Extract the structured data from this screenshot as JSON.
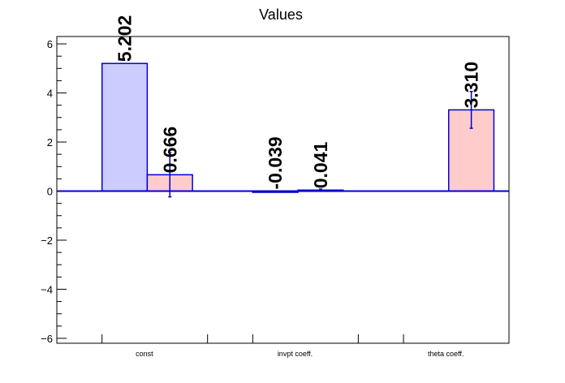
{
  "chart_data": {
    "type": "bar",
    "title": "Values",
    "xlabel": "",
    "ylabel": "",
    "ylim": [
      -6.2,
      6.3
    ],
    "yticks": [
      -6,
      -4,
      -2,
      0,
      2,
      4,
      6
    ],
    "ytick_labels": [
      "−6",
      "−4",
      "−2",
      "0",
      "2",
      "4",
      "6"
    ],
    "categories": [
      "const",
      "invpt coeff.",
      "theta coeff."
    ],
    "grid": false,
    "colors": {
      "series1_fill": "#ccccff",
      "series2_fill": "#ffcccc",
      "outline": "#0000cc",
      "zero_line": "#0000cc"
    },
    "series": [
      {
        "values": [
          5.202,
          -0.039,
          null
        ],
        "errors": [
          null,
          null,
          null
        ],
        "labels": [
          "5.202",
          "-0.039",
          ""
        ]
      },
      {
        "values": [
          0.666,
          0.041,
          3.31
        ],
        "errors": [
          0.9,
          0.04,
          0.75
        ],
        "labels": [
          "0.666",
          "0.041",
          "3.310"
        ]
      }
    ]
  }
}
